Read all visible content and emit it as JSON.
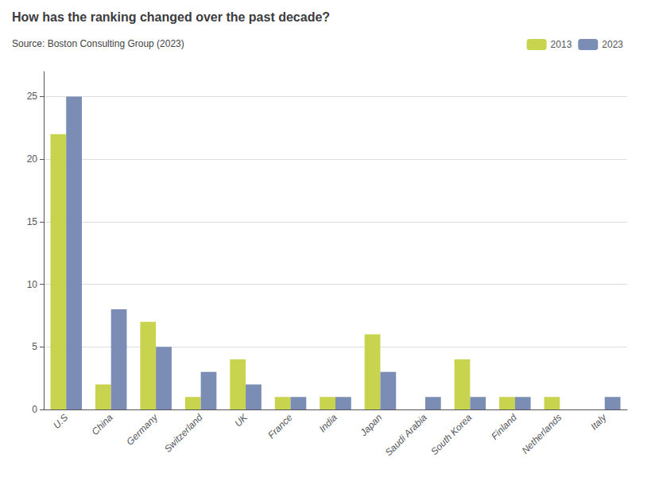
{
  "chart_data": {
    "type": "bar",
    "title": "How has the ranking changed over the past decade?",
    "subtitle": "Source: Boston Consulting Group (2023)",
    "categories": [
      "U.S",
      "China",
      "Germany",
      "Switzerland",
      "UK",
      "France",
      "India",
      "Japan",
      "Saudi Arabia",
      "South Korea",
      "Finland",
      "Netherlands",
      "Italy"
    ],
    "series": [
      {
        "name": "2013",
        "color": "#c8d44e",
        "values": [
          22,
          2,
          7,
          1,
          4,
          1,
          1,
          6,
          0,
          4,
          1,
          1,
          0
        ]
      },
      {
        "name": "2023",
        "color": "#7b8db5",
        "values": [
          25,
          8,
          5,
          3,
          2,
          1,
          1,
          3,
          1,
          1,
          1,
          0,
          1
        ]
      }
    ],
    "ylim": [
      0,
      27
    ],
    "yticks": [
      0,
      5,
      10,
      15,
      20,
      25
    ],
    "grid": true,
    "legend": "top"
  }
}
